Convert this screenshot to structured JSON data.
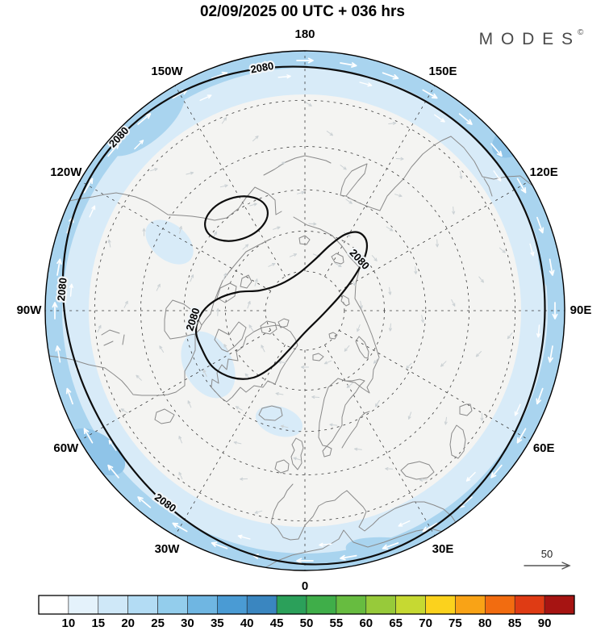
{
  "header": {
    "title": "02/09/2025  00 UTC  + 036 hrs",
    "brand": "M O D E S",
    "brand_mark": "©"
  },
  "map": {
    "longitude_labels": [
      {
        "text": "180",
        "deg": 180
      },
      {
        "text": "150E",
        "deg": 150
      },
      {
        "text": "120E",
        "deg": 120
      },
      {
        "text": "90E",
        "deg": 90
      },
      {
        "text": "60E",
        "deg": 60
      },
      {
        "text": "30E",
        "deg": 30
      },
      {
        "text": "0",
        "deg": 0
      },
      {
        "text": "30W",
        "deg": 330
      },
      {
        "text": "60W",
        "deg": 300
      },
      {
        "text": "90W",
        "deg": 270
      },
      {
        "text": "120W",
        "deg": 240
      },
      {
        "text": "150W",
        "deg": 210
      }
    ],
    "contour_label": "2080",
    "wind_scale_label": "50"
  },
  "colorbar": {
    "tick_labels": [
      "10",
      "15",
      "20",
      "25",
      "30",
      "35",
      "40",
      "45",
      "50",
      "55",
      "60",
      "65",
      "70",
      "75",
      "80",
      "85",
      "90"
    ],
    "cell_colors": [
      "#ffffff",
      "#e4f2fb",
      "#cfe8f8",
      "#b3dcf4",
      "#93cdec",
      "#6fb6e2",
      "#4a9bd4",
      "#3a86c0",
      "#2ba05a",
      "#3fae49",
      "#67bc40",
      "#97ca3a",
      "#c6d932",
      "#fbd21d",
      "#f9a316",
      "#f26c10",
      "#df3b14",
      "#a61412"
    ]
  },
  "colors": {
    "rim_outer": "#a9d4ef",
    "rim_inner": "#d8ebf8",
    "rim_deep": "#8fc4e8",
    "interior": "#f4f4f2",
    "contour": "#0d0d0d",
    "coastline": "#8a8a8a",
    "rim_arrow": "#ffffff",
    "interior_arrow": "#ccd2d5",
    "graticule": "#3c3c3c"
  },
  "chart_data": {
    "type": "heatmap",
    "title": "02/09/2025  00 UTC  + 036 hrs",
    "description": "MODES Northern-Hemisphere polar stereographic forecast map: wind speed shading (light blue band near map edge, values ~10-25), geopotential height contour labeled 2080 (outer circumpolar loop, an elongated inner loop across the pole and one small closed oval), and white wind vectors along the shaded rim",
    "projection": "north-polar-stereographic",
    "longitude_ring_labels": [
      "180",
      "150E",
      "120E",
      "90E",
      "60E",
      "30E",
      "0",
      "30W",
      "60W",
      "90W",
      "120W",
      "150W"
    ],
    "contour_levels": [
      2080
    ],
    "colorbar_levels": [
      10,
      15,
      20,
      25,
      30,
      35,
      40,
      45,
      50,
      55,
      60,
      65,
      70,
      75,
      80,
      85,
      90
    ],
    "colorbar_colors": [
      "#ffffff",
      "#e4f2fb",
      "#cfe8f8",
      "#b3dcf4",
      "#93cdec",
      "#6fb6e2",
      "#4a9bd4",
      "#3a86c0",
      "#2ba05a",
      "#3fae49",
      "#67bc40",
      "#97ca3a",
      "#c6d932",
      "#fbd21d",
      "#f9a316",
      "#f26c10",
      "#df3b14",
      "#a61412"
    ],
    "reference_vector": 50,
    "legend_position": "bottom"
  }
}
